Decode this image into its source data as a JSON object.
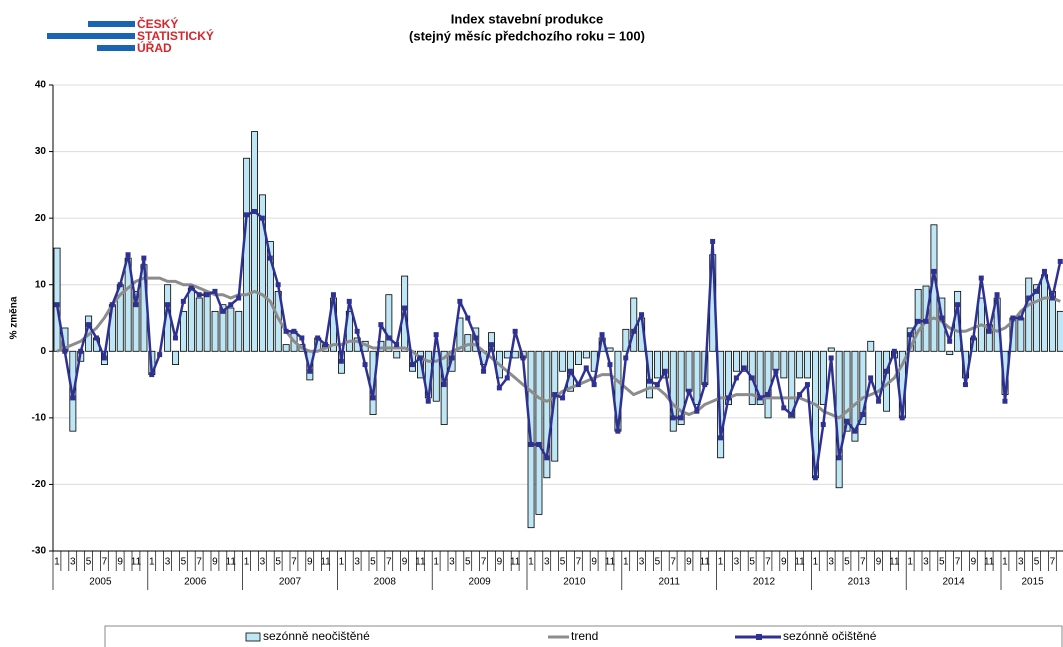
{
  "logo": [
    "ČESKÝ",
    "STATISTICKÝ",
    "ÚŘAD"
  ],
  "chart_data": {
    "type": "bar_line",
    "title": "Index stavební produkce",
    "subtitle": "(stejný měsíc předchozího roku = 100)",
    "y_label": "% změna",
    "categories": [
      "1",
      null,
      "3",
      null,
      "5",
      null,
      "7",
      null,
      "9",
      null,
      "11",
      null,
      "1",
      null,
      "3",
      null,
      "5",
      null,
      "7",
      null,
      "9",
      null,
      "11",
      null,
      "1",
      null,
      "3",
      null,
      "5",
      null,
      "7",
      null,
      "9",
      null,
      "11",
      null,
      "1",
      null,
      "3",
      null,
      "5",
      null,
      "7",
      null,
      "9",
      null,
      "11",
      null,
      "1",
      null,
      "3",
      null,
      "5",
      null,
      "7",
      null,
      "9",
      null,
      "11",
      null,
      "1",
      null,
      "3",
      null,
      "5",
      null,
      "7",
      null,
      "9",
      null,
      "11",
      null,
      "1",
      null,
      "3",
      null,
      "5",
      null,
      "7",
      null,
      "9",
      null,
      "11",
      null,
      "1",
      null,
      "3",
      null,
      "5",
      null,
      "7",
      null,
      "9",
      null,
      "11",
      null,
      "1",
      null,
      "3",
      null,
      "5",
      null,
      "7",
      null,
      "9",
      null,
      "11",
      null,
      "1",
      null,
      "3",
      null,
      "5",
      null,
      "7",
      null,
      "9",
      null,
      "11",
      null,
      "1",
      null,
      "3",
      null,
      "5",
      null,
      "7",
      null
    ],
    "years": [
      "2005",
      "2006",
      "2007",
      "2008",
      "2009",
      "2010",
      "2011",
      "2012",
      "2013",
      "2014",
      "2015"
    ],
    "ylim": [
      -30,
      40
    ],
    "yticks": [
      -30,
      -20,
      -10,
      0,
      10,
      20,
      30,
      40
    ],
    "grid": true,
    "series": [
      {
        "name": "sezónně neočištěné",
        "kind": "bar",
        "color": "#bfe6f5",
        "values": [
          15.5,
          3.5,
          -12,
          -1.5,
          5.3,
          2,
          -2,
          7,
          10,
          14,
          9,
          13,
          -3.5,
          0,
          10,
          -2,
          6,
          9.5,
          8,
          9,
          6,
          7,
          6.5,
          6,
          29,
          33,
          23.5,
          16.5,
          9,
          1,
          3,
          1,
          -4.3,
          2,
          1,
          8,
          -3.3,
          6,
          2,
          1.5,
          -9.5,
          1.5,
          8.5,
          -1,
          11.3,
          -3,
          -4,
          -7,
          -7.5,
          -11,
          -3,
          5,
          2.5,
          3.5,
          -2,
          2.8,
          -4,
          -1,
          -1,
          -1,
          -26.5,
          -24.5,
          -19,
          -16.5,
          -3,
          -6,
          -2,
          -1,
          -3,
          2,
          0.5,
          -12,
          3.3,
          8,
          5,
          -7,
          -4,
          -4,
          -12,
          -11,
          -6,
          -8,
          -5,
          14.5,
          -16,
          -8,
          -3,
          -3,
          -8,
          -8,
          -10,
          -2.8,
          -4,
          -10,
          -4,
          -4,
          -19,
          -8,
          0.5,
          -20.5,
          -12,
          -13.5,
          -11,
          1.5,
          -6,
          -9,
          -1,
          -10,
          3.5,
          9.3,
          9.8,
          19,
          8,
          -0.5,
          9,
          -4,
          2,
          8,
          4,
          8,
          -6.5,
          5,
          5,
          11,
          10,
          11.5,
          9,
          6
        ]
      },
      {
        "name": "trend",
        "kind": "line",
        "color": "#8c8c8c",
        "values": [
          0,
          0.5,
          1,
          1.5,
          2.5,
          3.5,
          5,
          7,
          8.5,
          9.5,
          10.5,
          11,
          11,
          11,
          10.5,
          10.5,
          10,
          10,
          9.5,
          9,
          8.5,
          8.5,
          8,
          8.5,
          8.5,
          9,
          8.5,
          7.5,
          5,
          3,
          1.5,
          0.5,
          0,
          0,
          0.5,
          1,
          1,
          1.5,
          1.5,
          1,
          0.5,
          0.5,
          0.5,
          0.5,
          0.5,
          0,
          -1,
          -1.5,
          -1.5,
          -1,
          0,
          0.5,
          1,
          1,
          0,
          -1,
          -2,
          -3,
          -4,
          -5,
          -6,
          -7,
          -7.5,
          -7,
          -6,
          -5.5,
          -5,
          -4.5,
          -4,
          -3.5,
          -3.5,
          -4.5,
          -5.5,
          -6.5,
          -6,
          -5.5,
          -5.5,
          -6.5,
          -8,
          -9,
          -9.5,
          -9,
          -8,
          -7.5,
          -7,
          -7,
          -6.5,
          -6.5,
          -6.5,
          -7,
          -7,
          -7,
          -7,
          -7,
          -7,
          -7.5,
          -8,
          -9,
          -9.5,
          -10,
          -9,
          -8,
          -7,
          -6.5,
          -6,
          -5,
          -4,
          -2,
          0.5,
          3,
          4.5,
          5,
          4.5,
          3.5,
          3,
          3,
          3.5,
          4,
          3.5,
          3,
          3.5,
          4.5,
          6,
          7,
          7.5,
          8,
          8,
          7.5
        ]
      },
      {
        "name": "sezónně očištěné",
        "kind": "line_marker",
        "color": "#2e3192",
        "values": [
          7,
          0,
          -7,
          0,
          4,
          2,
          -1,
          7,
          10,
          14.5,
          7,
          14,
          -3.5,
          -0.5,
          7,
          2,
          7.5,
          9.5,
          8.5,
          8.5,
          9,
          6,
          7,
          8,
          20.5,
          21,
          20,
          14,
          10,
          3,
          3,
          2,
          -3,
          2,
          1,
          8.5,
          -1.5,
          7.5,
          3,
          -2,
          -7,
          4,
          2,
          1,
          6.5,
          -2,
          -1,
          -7.5,
          2.5,
          -5,
          -1,
          7.5,
          5,
          2,
          -3,
          1,
          -5.5,
          -4,
          3,
          -1,
          -14,
          -14,
          -16,
          -6.5,
          -7,
          -3,
          -5,
          -2.5,
          -5,
          2.5,
          -2,
          -12,
          -1,
          3,
          5.5,
          -4.5,
          -5,
          -3,
          -10,
          -10,
          -6,
          -9,
          -5,
          16.5,
          -13,
          -7,
          -4,
          -2.5,
          -4,
          -7,
          -6.5,
          -3,
          -8.5,
          -9.5,
          -6.5,
          -5,
          -19,
          -11,
          -1,
          -16,
          -10.5,
          -12,
          -9.5,
          -4,
          -7.5,
          -3,
          0,
          -10,
          2.5,
          4.5,
          4.5,
          12,
          5,
          1.5,
          7,
          -5,
          2,
          11,
          3,
          8.5,
          -7.5,
          5,
          5,
          8,
          9,
          12,
          8,
          13.5
        ]
      }
    ]
  }
}
